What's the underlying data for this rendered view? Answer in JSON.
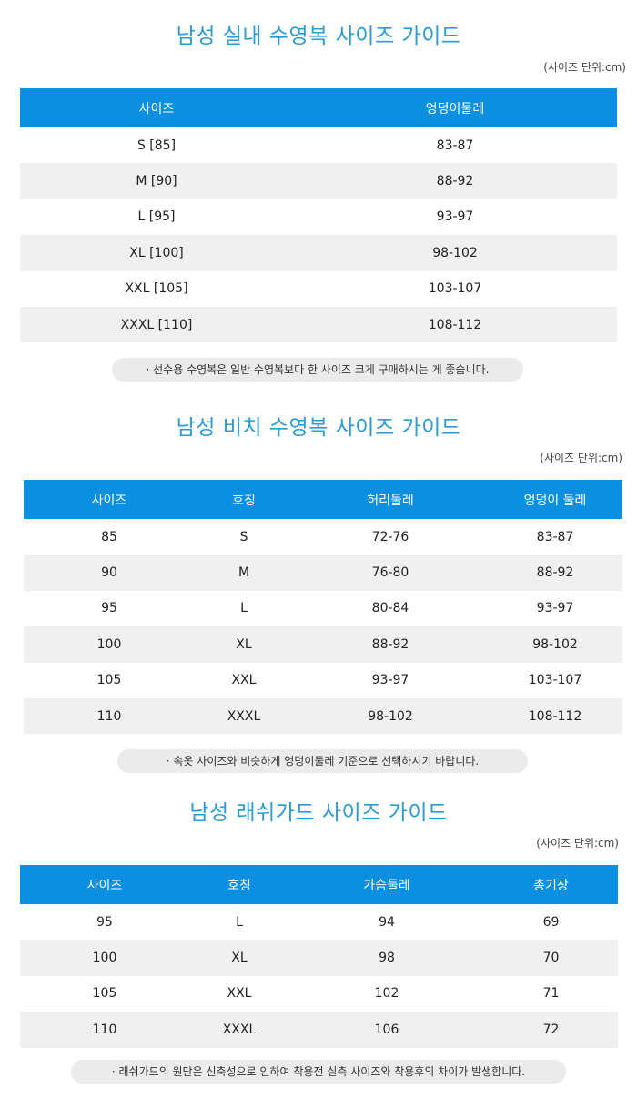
{
  "sections": [
    {
      "title": "남성 실내 수영복 사이즈  가이드",
      "unit": "(사이즈 단위:cm)",
      "headers": [
        "사이즈",
        "엉덩이둘레"
      ],
      "rows": [
        [
          "S [85]",
          "83-87"
        ],
        [
          "M [90]",
          "88-92"
        ],
        [
          "L [95]",
          "93-97"
        ],
        [
          "XL [100]",
          "98-102"
        ],
        [
          "XXL [105]",
          "103-107"
        ],
        [
          "XXXL [110]",
          "108-112"
        ]
      ],
      "note": "· 선수용 수영복은 일반 수영복보다 한 사이즈 크게 구매하시는 게 좋습니다."
    },
    {
      "title": "남성 비치 수영복 사이즈  가이드",
      "unit": "(사이즈 단위:cm)",
      "headers": [
        "사이즈",
        "호칭",
        "허리둘레",
        "엉덩이 둘레"
      ],
      "rows": [
        [
          "85",
          "S",
          "72-76",
          "83-87"
        ],
        [
          "90",
          "M",
          "76-80",
          "88-92"
        ],
        [
          "95",
          "L",
          "80-84",
          "93-97"
        ],
        [
          "100",
          "XL",
          "88-92",
          "98-102"
        ],
        [
          "105",
          "XXL",
          "93-97",
          "103-107"
        ],
        [
          "110",
          "XXXL",
          "98-102",
          "108-112"
        ]
      ],
      "note": "· 속옷 사이즈와 비슷하게 엉덩이둘레 기준으로 선택하시기 바랍니다."
    },
    {
      "title": "남성 래쉬가드 사이즈  가이드",
      "unit": "(사이즈 단위:cm)",
      "headers": [
        "사이즈",
        "호칭",
        "가슴둘레",
        "총기장"
      ],
      "rows": [
        [
          "95",
          "L",
          "94",
          "69"
        ],
        [
          "100",
          "XL",
          "98",
          "70"
        ],
        [
          "105",
          "XXL",
          "102",
          "71"
        ],
        [
          "110",
          "XXXL",
          "106",
          "72"
        ]
      ],
      "note": "· 래쉬가드의 원단은 신축성으로 인하여 착용전 실측 사이즈와 착용후의 차이가 발생합니다."
    }
  ],
  "colors": {
    "title": "#2b9bd3",
    "header": "#0b8fe1",
    "stripe": "#f0f0f0",
    "note_bg": "#ebebeb"
  }
}
